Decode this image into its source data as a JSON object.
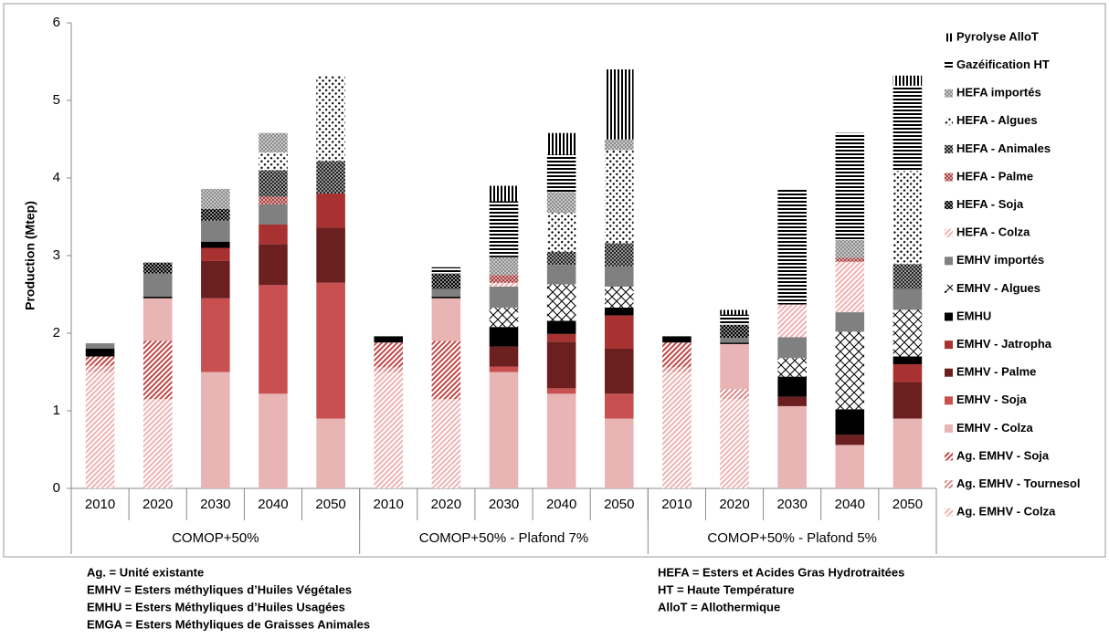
{
  "chart_data": {
    "type": "stacked-bar",
    "y_label": "Production (Mtep)",
    "ylim": [
      0,
      6
    ],
    "yticks": [
      0,
      1,
      2,
      3,
      4,
      5,
      6
    ],
    "groups": [
      {
        "name": "COMOP+50%",
        "categories": [
          "2010",
          "2020",
          "2030",
          "2040",
          "2050"
        ]
      },
      {
        "name": "COMOP+50% - Plafond 7%",
        "categories": [
          "2010",
          "2020",
          "2030",
          "2040",
          "2050"
        ]
      },
      {
        "name": "COMOP+50% - Plafond 5%",
        "categories": [
          "2010",
          "2020",
          "2030",
          "2040",
          "2050"
        ]
      }
    ],
    "legend": "right",
    "series": [
      {
        "name": "Ag. EMHV - Colza",
        "color": "#eeb3b3",
        "pattern": "diag",
        "values": [
          1.5,
          1.15,
          0,
          0,
          0,
          1.5,
          1.15,
          0,
          0,
          0,
          1.5,
          1.15,
          0,
          0,
          0
        ]
      },
      {
        "name": "Ag. EMHV - Tournesol",
        "color": "#d98a8a",
        "pattern": "diag",
        "values": [
          0.08,
          0,
          0,
          0,
          0,
          0.06,
          0,
          0,
          0,
          0,
          0.06,
          0.13,
          0,
          0,
          0
        ]
      },
      {
        "name": "Ag. EMHV - Soja",
        "color": "#c04848",
        "pattern": "diag",
        "values": [
          0.12,
          0.75,
          0,
          0,
          0,
          0.32,
          0.75,
          0,
          0,
          0,
          0.32,
          0,
          0,
          0,
          0
        ]
      },
      {
        "name": "EMHV - Colza",
        "color": "#e8b4b4",
        "pattern": "solid",
        "values": [
          0,
          0.55,
          1.5,
          1.22,
          0.9,
          0,
          0.55,
          1.5,
          1.22,
          0.9,
          0,
          0.58,
          1.06,
          0.56,
          0.9
        ]
      },
      {
        "name": "EMHV - Soja",
        "color": "#c85050",
        "pattern": "solid",
        "values": [
          0,
          0,
          0.95,
          1.4,
          1.75,
          0,
          0,
          0.07,
          0.07,
          0.32,
          0,
          0,
          0,
          0,
          0
        ]
      },
      {
        "name": "EMHV - Palme",
        "color": "#6b1f1f",
        "pattern": "solid",
        "values": [
          0,
          0,
          0.48,
          0.53,
          0.71,
          0,
          0,
          0.26,
          0.6,
          0.58,
          0,
          0,
          0.12,
          0.13,
          0.47
        ]
      },
      {
        "name": "EMHV - Jatropha",
        "color": "#a83232",
        "pattern": "solid",
        "values": [
          0,
          0,
          0.17,
          0.25,
          0.44,
          0,
          0,
          0,
          0.1,
          0.43,
          0,
          0,
          0,
          0,
          0.23
        ]
      },
      {
        "name": "EMHU",
        "color": "#000000",
        "pattern": "solid",
        "values": [
          0.1,
          0.02,
          0.08,
          0,
          0,
          0.08,
          0.02,
          0.25,
          0.17,
          0.1,
          0.08,
          0.02,
          0.26,
          0.33,
          0.1
        ]
      },
      {
        "name": "EMHV - Algues",
        "color": "#000000",
        "pattern": "diamonds",
        "values": [
          0,
          0,
          0,
          0,
          0,
          0,
          0,
          0.25,
          0.47,
          0.27,
          0,
          0,
          0.24,
          1.0,
          0.6
        ]
      },
      {
        "name": "EMHV importés",
        "color": "#808080",
        "pattern": "solid",
        "values": [
          0.07,
          0.3,
          0.27,
          0.26,
          0,
          0,
          0.1,
          0.27,
          0.25,
          0.26,
          0,
          0.06,
          0.27,
          0.25,
          0.27
        ]
      },
      {
        "name": "HEFA - Colza",
        "color": "#f2b0b0",
        "pattern": "diag",
        "values": [
          0,
          0,
          0,
          0,
          0,
          0,
          0,
          0.05,
          0,
          0,
          0,
          0,
          0.42,
          0.65,
          0
        ]
      },
      {
        "name": "HEFA - Soja",
        "color": "#000000",
        "pattern": "checker",
        "values": [
          0,
          0.14,
          0.15,
          0,
          0,
          0,
          0.2,
          0,
          0,
          0,
          0,
          0.17,
          0,
          0,
          0
        ]
      },
      {
        "name": "HEFA - Palme",
        "color": "#a94040",
        "pattern": "checker",
        "values": [
          0,
          0,
          0,
          0.1,
          0,
          0,
          0,
          0.1,
          0,
          0,
          0,
          0,
          0,
          0.05,
          0
        ]
      },
      {
        "name": "HEFA - Animales",
        "color": "#222222",
        "pattern": "checker",
        "values": [
          0,
          0,
          0,
          0.34,
          0.42,
          0,
          0,
          0,
          0.17,
          0.3,
          0,
          0,
          0,
          0,
          0.32
        ]
      },
      {
        "name": "HEFA - Algues",
        "color": "#000000",
        "pattern": "dots",
        "values": [
          0,
          0,
          0,
          0.23,
          1.1,
          0,
          0,
          0,
          0.5,
          1.2,
          0,
          0,
          0,
          0,
          1.2
        ]
      },
      {
        "name": "HEFA importés",
        "color": "#8a8a8a",
        "pattern": "checker",
        "values": [
          0,
          0,
          0.26,
          0.25,
          0,
          0,
          0,
          0.23,
          0.27,
          0.14,
          0,
          0,
          0,
          0.23,
          0
        ]
      },
      {
        "name": "Gazéification HT",
        "color": "#000000",
        "pattern": "hlines",
        "values": [
          0,
          0,
          0,
          0,
          0,
          0,
          0.08,
          0.72,
          0.48,
          0,
          0,
          0.13,
          1.49,
          1.38,
          1.1
        ]
      },
      {
        "name": "Pyrolyse AlloT",
        "color": "#000000",
        "pattern": "vlines",
        "values": [
          0,
          0,
          0,
          0,
          0,
          0,
          0,
          0.2,
          0.28,
          0.9,
          0,
          0.06,
          0,
          0,
          0.13
        ]
      }
    ],
    "notes_left": [
      "Ag. = Unité existante",
      "EMHV = Esters méthyliques d’Huiles Végétales",
      "EMHU = Esters Méthyliques d’Huiles Usagées",
      "EMGA =  Esters Méthyliques de Graisses Animales"
    ],
    "notes_right": [
      "HEFA = Esters et Acides Gras Hydrotraitées",
      "HT = Haute Température",
      "AlloT = Allothermique"
    ]
  }
}
